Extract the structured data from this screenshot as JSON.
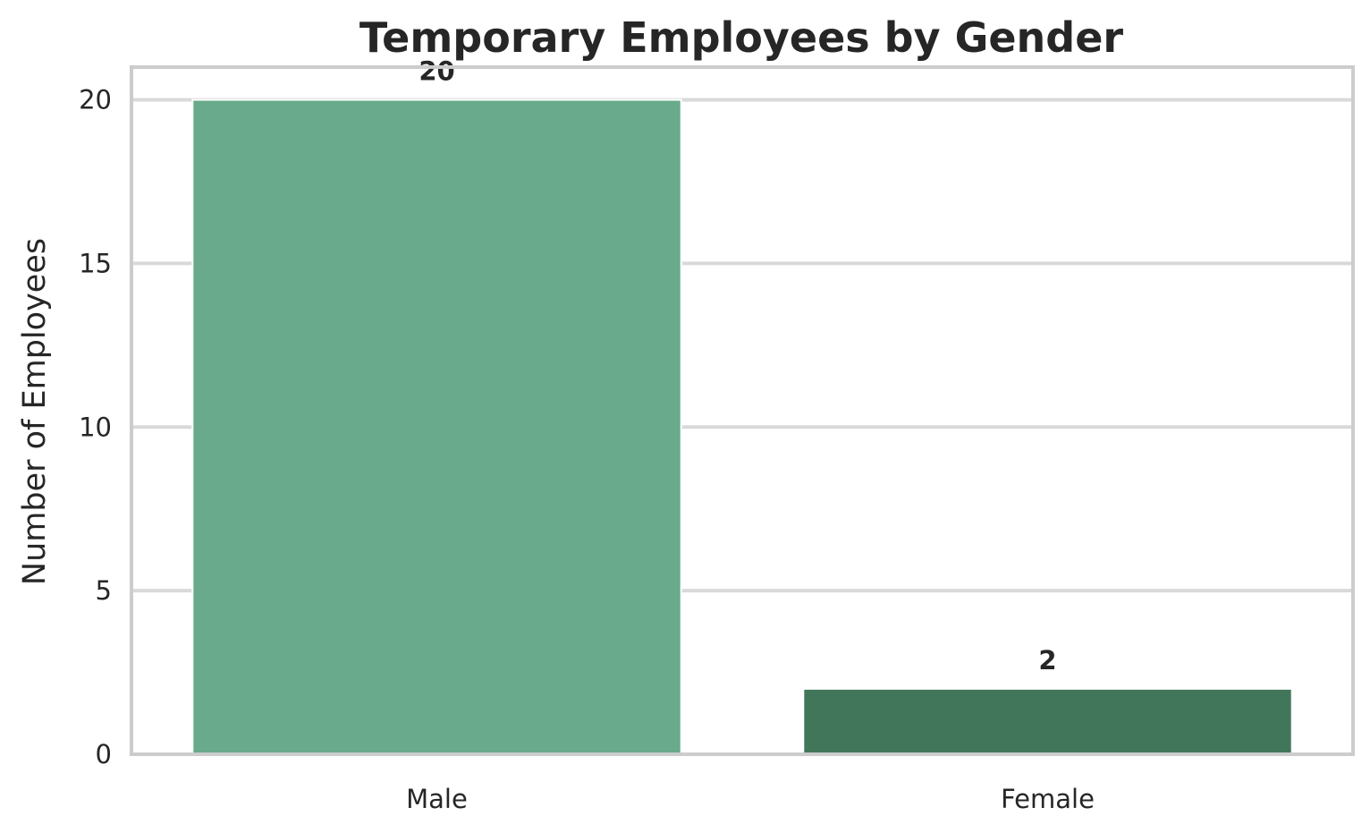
{
  "chart_data": {
    "type": "bar",
    "title": "Temporary Employees by Gender",
    "xlabel": "",
    "ylabel": "Number of Employees",
    "categories": [
      "Male",
      "Female"
    ],
    "values": [
      20,
      2
    ],
    "data_labels": [
      "20",
      "2"
    ],
    "bar_colors": [
      "#68aa8b",
      "#41765a"
    ],
    "ylim": [
      0,
      21
    ],
    "yticks": [
      0,
      5,
      10,
      15,
      20
    ],
    "ytick_labels": [
      "0",
      "5",
      "10",
      "15",
      "20"
    ],
    "grid": true,
    "legend": "none"
  },
  "colors": {
    "grid": "#d9d9d9",
    "frame": "#cccccc",
    "text": "#262626"
  }
}
